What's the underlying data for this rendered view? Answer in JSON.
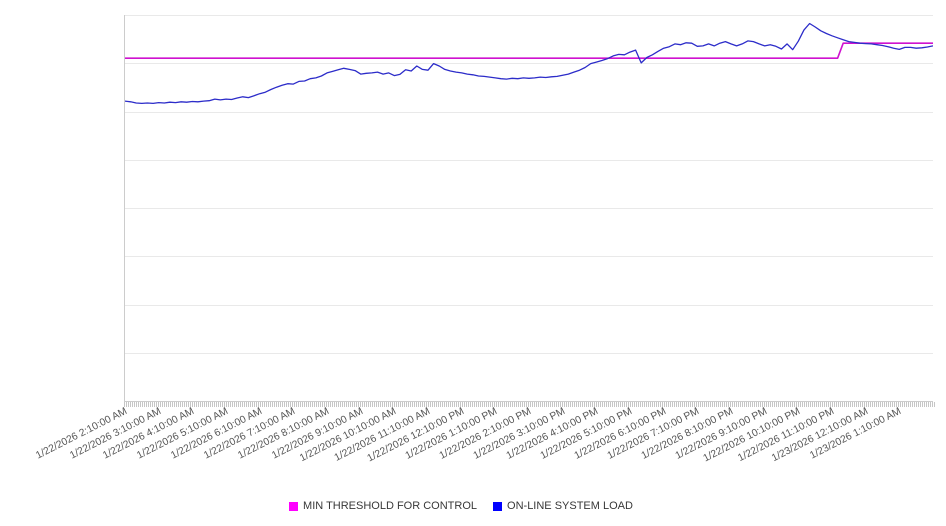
{
  "page": {
    "background": "#ffffff"
  },
  "chart_data": {
    "type": "line",
    "title": "",
    "xlabel": "",
    "ylabel": "",
    "x_axis": {
      "tick_labels": [
        "1/22/2026 2:10:00 AM",
        "1/22/2026 3:10:00 AM",
        "1/22/2026 4:10:00 AM",
        "1/22/2026 5:10:00 AM",
        "1/22/2026 6:10:00 AM",
        "1/22/2026 7:10:00 AM",
        "1/22/2026 8:10:00 AM",
        "1/22/2026 9:10:00 AM",
        "1/22/2026 10:10:00 AM",
        "1/22/2026 11:10:00 AM",
        "1/22/2026 12:10:00 PM",
        "1/22/2026 1:10:00 PM",
        "1/22/2026 2:10:00 PM",
        "1/22/2026 3:10:00 PM",
        "1/22/2026 4:10:00 PM",
        "1/22/2026 5:10:00 PM",
        "1/22/2026 6:10:00 PM",
        "1/22/2026 7:10:00 PM",
        "1/22/2026 8:10:00 PM",
        "1/22/2026 9:10:00 PM",
        "1/22/2026 10:10:00 PM",
        "1/22/2026 11:10:00 PM",
        "1/23/2026 12:10:00 AM",
        "1/23/2026 1:10:00 AM"
      ],
      "point_interval_minutes": 10,
      "points_per_series": 145,
      "label_rotation_deg": -27,
      "minor_ticks": true
    },
    "y_axis": {
      "labels_visible": false,
      "unit": "percent of plot height (no axis labels shown)",
      "range": [
        0,
        100
      ],
      "gridline_rows": 8,
      "grid_visible": true
    },
    "legend": [
      {
        "label": "MIN THRESHOLD FOR CONTROL",
        "color": "#ff00ff"
      },
      {
        "label": "ON-LINE SYSTEM LOAD",
        "color": "#0000ff"
      }
    ],
    "legend_position": "bottom-center",
    "series": [
      {
        "name": "MIN THRESHOLD FOR CONTROL",
        "slug": "min-threshold-line",
        "color": "#cf12cf",
        "stroke_width": 1.6,
        "values_rle": [
          [
            128,
            88.8
          ],
          [
            17,
            92.7
          ]
        ]
      },
      {
        "name": "ON-LINE SYSTEM LOAD",
        "slug": "online-system-load-line",
        "color": "#2c2cc9",
        "stroke_width": 1.3,
        "values": [
          77.7,
          77.5,
          77.2,
          77.1,
          77.2,
          77.1,
          77.3,
          77.2,
          77.4,
          77.3,
          77.5,
          77.4,
          77.6,
          77.5,
          77.7,
          77.8,
          78.2,
          78.0,
          78.2,
          78.1,
          78.5,
          78.8,
          78.6,
          79.1,
          79.6,
          80.0,
          80.7,
          81.3,
          81.8,
          82.2,
          82.1,
          82.8,
          82.9,
          83.5,
          83.7,
          84.2,
          85.0,
          85.4,
          85.8,
          86.2,
          85.9,
          85.6,
          84.7,
          84.9,
          85.0,
          85.2,
          84.7,
          85.0,
          84.3,
          84.6,
          85.8,
          85.5,
          86.8,
          85.9,
          85.7,
          87.4,
          86.8,
          85.9,
          85.5,
          85.2,
          85.0,
          84.7,
          84.5,
          84.2,
          84.1,
          83.9,
          83.7,
          83.5,
          83.4,
          83.6,
          83.5,
          83.7,
          83.6,
          83.7,
          83.9,
          83.8,
          84.0,
          84.1,
          84.4,
          84.7,
          85.2,
          85.7,
          86.4,
          87.4,
          87.8,
          88.2,
          88.7,
          89.4,
          89.8,
          89.7,
          90.4,
          90.9,
          87.6,
          89.0,
          89.7,
          90.6,
          91.4,
          91.8,
          92.5,
          92.3,
          92.8,
          92.7,
          91.9,
          92.0,
          92.5,
          92.0,
          92.7,
          93.1,
          92.5,
          92.0,
          92.5,
          93.3,
          93.1,
          92.5,
          92.0,
          92.3,
          91.9,
          91.2,
          92.5,
          91.0,
          93.2,
          96.1,
          97.8,
          96.9,
          95.9,
          95.2,
          94.6,
          94.1,
          93.6,
          93.1,
          92.9,
          92.7,
          92.6,
          92.5,
          92.3,
          92.1,
          91.8,
          91.4,
          91.1,
          91.6,
          91.6,
          91.4,
          91.5,
          91.7,
          92.0
        ]
      }
    ]
  }
}
